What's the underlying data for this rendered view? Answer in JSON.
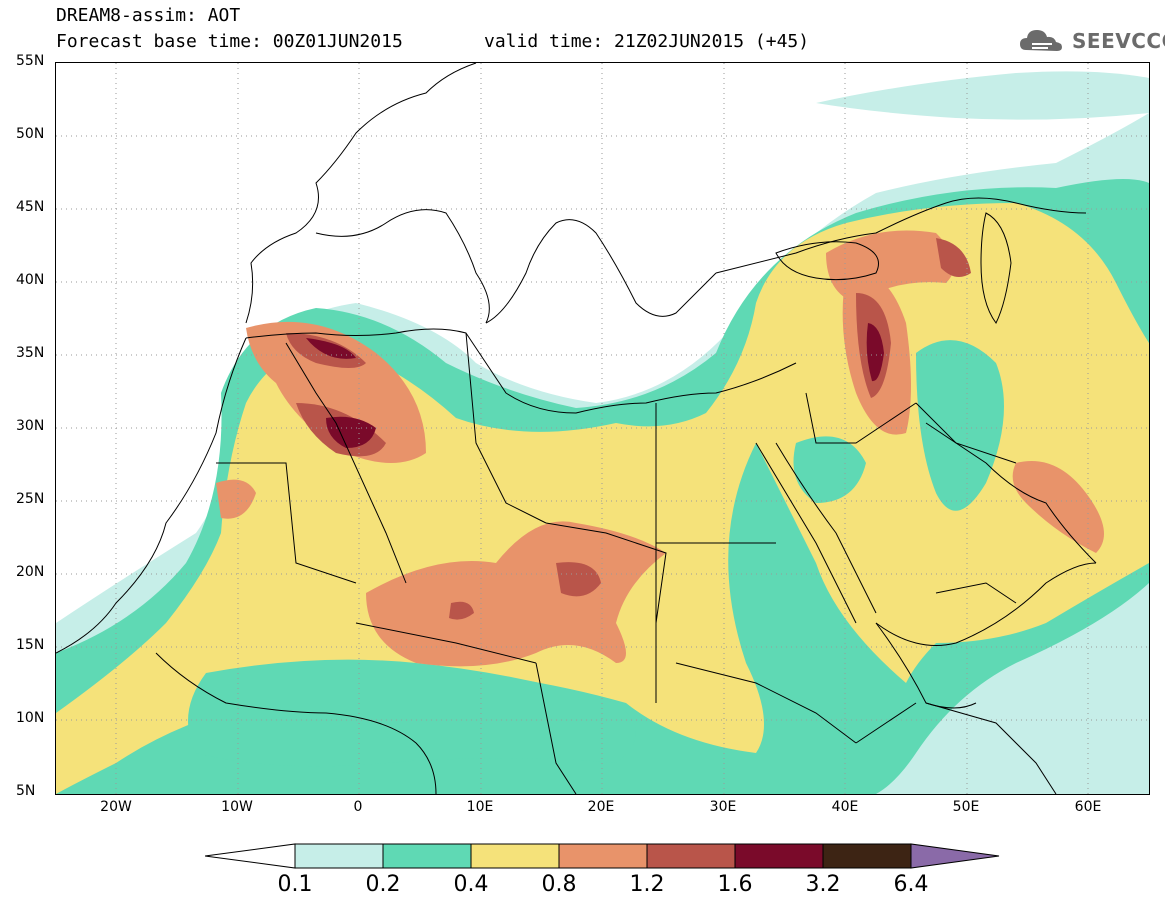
{
  "header": {
    "title_line1": "DREAM8-assim: AOT",
    "base_time": "Forecast base time: 00Z01JUN2015",
    "valid_time": "valid time: 21Z02JUN2015 (+45)",
    "logo_text": "SEEVCCC",
    "logo_icon": "cloud-icon"
  },
  "map": {
    "projection": "latitude-longitude",
    "extent": {
      "lon_min": -25,
      "lon_max": 65,
      "lat_min": 5,
      "lat_max": 55
    },
    "lat_ticks": [
      "55N",
      "50N",
      "45N",
      "40N",
      "35N",
      "30N",
      "25N",
      "20N",
      "15N",
      "10N",
      "5N"
    ],
    "lon_ticks": [
      "20W",
      "10W",
      "0",
      "10E",
      "20E",
      "30E",
      "40E",
      "50E",
      "60E"
    ],
    "grid": "dotted"
  },
  "colorbar": {
    "levels": [
      "0.1",
      "0.2",
      "0.4",
      "0.8",
      "1.2",
      "1.6",
      "3.2",
      "6.4"
    ],
    "colors": [
      "#ffffff",
      "#c6eee8",
      "#5fd9b4",
      "#f5e27a",
      "#e8936a",
      "#b9554a",
      "#7a0a2a",
      "#3d2414",
      "#8a6aa8"
    ]
  },
  "chart_data": {
    "type": "heatmap",
    "variable": "AOT",
    "levels": [
      0.1,
      0.2,
      0.4,
      0.8,
      1.2,
      1.6,
      3.2,
      6.4
    ]
  }
}
